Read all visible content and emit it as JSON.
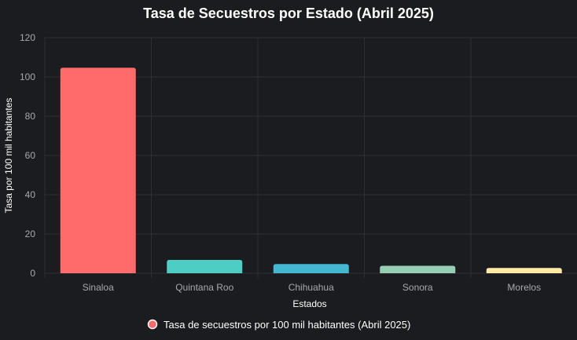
{
  "chart_data": {
    "type": "bar",
    "title": "Tasa de Secuestros por Estado (Abril 2025)",
    "xlabel": "Estados",
    "ylabel": "Tasa por 100 mil habitantes",
    "ylim": [
      0,
      120
    ],
    "yticks": [
      "0",
      "20",
      "40",
      "60",
      "80",
      "100",
      "120"
    ],
    "grid": true,
    "legend_position": "bottom",
    "categories": [
      "Sinaloa",
      "Quintana Roo",
      "Chihuahua",
      "Sonora",
      "Morelos"
    ],
    "series": [
      {
        "name": "Tasa de secuestros por 100 mil habitantes (Abril 2025)",
        "values": [
          104.7,
          6.8,
          4.7,
          3.8,
          2.7
        ]
      }
    ],
    "colors": [
      "#ff6b6b",
      "#4ecdc4",
      "#45b7d1",
      "#96ceb4",
      "#ffeaa7"
    ],
    "legend_color": "#ff6b6b",
    "background": "#1b1c1f",
    "grid_color": "#2e2f33"
  }
}
